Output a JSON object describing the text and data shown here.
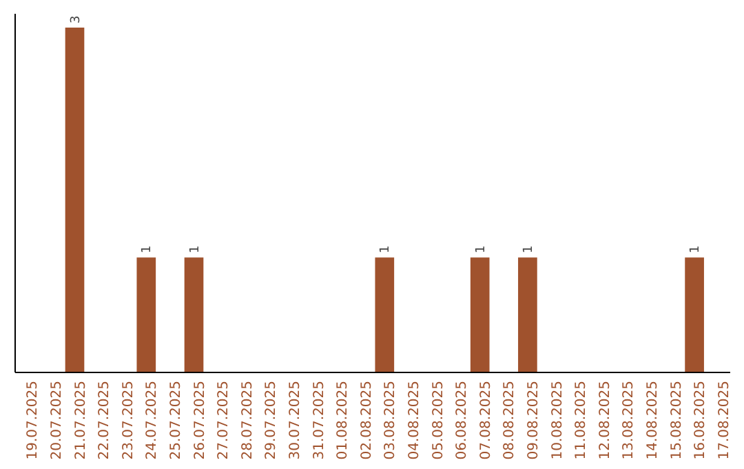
{
  "chart_data": {
    "type": "bar",
    "categories": [
      "19.07.2025",
      "20.07.2025",
      "21.07.2025",
      "22.07.2025",
      "23.07.2025",
      "24.07.2025",
      "25.07.2025",
      "26.07.2025",
      "27.07.2025",
      "28.07.2025",
      "29.07.2025",
      "30.07.2025",
      "31.07.2025",
      "01.08.2025",
      "02.08.2025",
      "03.08.2025",
      "04.08.2025",
      "05.08.2025",
      "06.08.2025",
      "07.08.2025",
      "08.08.2025",
      "09.08.2025",
      "10.08.2025",
      "11.08.2025",
      "12.08.2025",
      "13.08.2025",
      "14.08.2025",
      "15.08.2025",
      "16.08.2025",
      "17.08.2025"
    ],
    "values": [
      0,
      0,
      3,
      0,
      0,
      1,
      0,
      1,
      0,
      0,
      0,
      0,
      0,
      0,
      0,
      1,
      0,
      0,
      0,
      1,
      0,
      1,
      0,
      0,
      0,
      0,
      0,
      0,
      1,
      0
    ],
    "value_labels": [
      null,
      null,
      "3",
      null,
      null,
      "1",
      null,
      "1",
      null,
      null,
      null,
      null,
      null,
      null,
      null,
      "1",
      null,
      null,
      null,
      "1",
      null,
      "1",
      null,
      null,
      null,
      null,
      null,
      null,
      "1",
      null
    ],
    "color": "#a0522d",
    "ylim": [
      0,
      3.12
    ],
    "tick_labels": "x"
  }
}
